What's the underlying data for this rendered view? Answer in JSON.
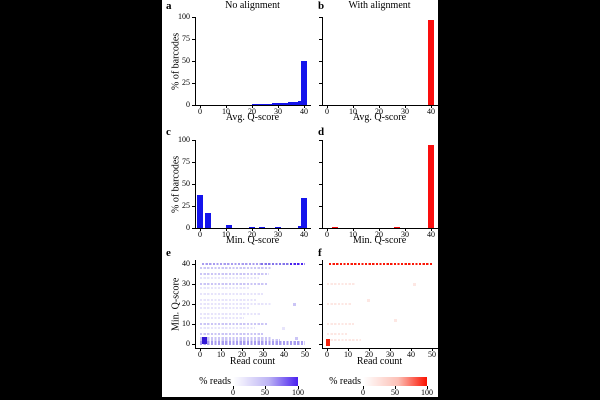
{
  "figure_background": "#ffffff",
  "page_background": "#000000",
  "chart_data": [
    {
      "id": "a",
      "panel_label": "a",
      "type": "bar",
      "title": "No alignment",
      "xlabel": "Avg. Q-score",
      "ylabel": "% of barcodes",
      "xlim": [
        0,
        40
      ],
      "ylim": [
        0,
        100
      ],
      "xticks": [
        0,
        10,
        20,
        30,
        40
      ],
      "yticks": [
        0,
        25,
        50,
        75,
        100
      ],
      "show_ytick_labels": true,
      "bar_color": "#1414EC",
      "bars": [
        [
          21,
          0.6
        ],
        [
          22,
          0.7
        ],
        [
          23,
          0.9
        ],
        [
          24,
          1.0
        ],
        [
          25,
          1.1
        ],
        [
          26,
          1.3
        ],
        [
          27,
          1.4
        ],
        [
          28,
          1.6
        ],
        [
          29,
          1.8
        ],
        [
          30,
          1.9
        ],
        [
          31,
          2.1
        ],
        [
          32,
          2.3
        ],
        [
          33,
          2.5
        ],
        [
          34,
          2.7
        ],
        [
          35,
          2.9
        ],
        [
          36,
          3.1
        ],
        [
          37,
          3.4
        ],
        [
          38,
          3.7
        ],
        [
          39,
          4.0
        ],
        [
          40,
          50
        ]
      ]
    },
    {
      "id": "b",
      "panel_label": "b",
      "type": "bar",
      "title": "With alignment",
      "xlabel": "Avg. Q-score",
      "ylabel": "",
      "xlim": [
        0,
        40
      ],
      "ylim": [
        0,
        100
      ],
      "xticks": [
        0,
        10,
        20,
        30,
        40
      ],
      "yticks": [
        0,
        25,
        50,
        75,
        100
      ],
      "show_ytick_labels": false,
      "bar_color": "#FA0E0E",
      "bars": [
        [
          40,
          97
        ]
      ]
    },
    {
      "id": "c",
      "panel_label": "c",
      "type": "bar",
      "title": "",
      "xlabel": "Min. Q-score",
      "ylabel": "% of barcodes",
      "xlim": [
        0,
        40
      ],
      "ylim": [
        0,
        100
      ],
      "xticks": [
        0,
        10,
        20,
        30,
        40
      ],
      "yticks": [
        0,
        25,
        50,
        75,
        100
      ],
      "show_ytick_labels": true,
      "bar_color": "#1414EC",
      "bars": [
        [
          0,
          38
        ],
        [
          3,
          17
        ],
        [
          11,
          3
        ],
        [
          20,
          1
        ],
        [
          24,
          1
        ],
        [
          30,
          1
        ],
        [
          39,
          2
        ],
        [
          40,
          34
        ]
      ]
    },
    {
      "id": "d",
      "panel_label": "d",
      "type": "bar",
      "title": "",
      "xlabel": "Min. Q-score",
      "ylabel": "",
      "xlim": [
        0,
        40
      ],
      "ylim": [
        0,
        100
      ],
      "xticks": [
        0,
        10,
        20,
        30,
        40
      ],
      "yticks": [
        0,
        25,
        50,
        75,
        100
      ],
      "show_ytick_labels": false,
      "bar_color": "#FA0E0E",
      "bars": [
        [
          3,
          1
        ],
        [
          27,
          1
        ],
        [
          40,
          94
        ]
      ]
    },
    {
      "id": "e",
      "panel_label": "e",
      "type": "heatmap",
      "title": "",
      "xlabel": "Read count",
      "ylabel": "Min. Q-score",
      "xlim": [
        0,
        50
      ],
      "ylim": [
        0,
        40
      ],
      "xticks": [
        0,
        10,
        20,
        30,
        40,
        50
      ],
      "yticks": [
        0,
        10,
        20,
        30,
        40
      ],
      "show_ytick_labels": true,
      "palette": {
        "vlight": "#E7E4FB",
        "light": "#CBC5F6",
        "medium": "#A89CF0",
        "mdark": "#8272EA",
        "dark": "#4A21EF",
        "blob": "#3318D6"
      },
      "rows": [
        [
          40,
          2,
          30,
          "medium"
        ],
        [
          40,
          30,
          44,
          "mdark"
        ],
        [
          40,
          44,
          50,
          "dark"
        ],
        [
          38,
          1,
          34,
          "light"
        ],
        [
          35,
          1,
          33,
          "light"
        ],
        [
          33,
          1,
          28,
          "vlight"
        ],
        [
          30,
          1,
          32,
          "light"
        ],
        [
          28,
          1,
          24,
          "vlight"
        ],
        [
          25,
          1,
          30,
          "vlight"
        ],
        [
          22,
          1,
          27,
          "vlight"
        ],
        [
          20,
          1,
          34,
          "vlight"
        ],
        [
          18,
          1,
          24,
          "vlight"
        ],
        [
          15,
          1,
          29,
          "vlight"
        ],
        [
          13,
          1,
          21,
          "vlight"
        ],
        [
          10,
          1,
          32,
          "light"
        ],
        [
          8,
          1,
          26,
          "vlight"
        ],
        [
          5,
          1,
          30,
          "light"
        ],
        [
          3,
          1,
          34,
          "light"
        ],
        [
          2,
          1,
          38,
          "light"
        ],
        [
          1,
          1,
          50,
          "medium"
        ],
        [
          0,
          1,
          50,
          "medium"
        ]
      ],
      "blocks": [
        {
          "x": 2,
          "y": 2,
          "w": 5,
          "h": 7,
          "shade": "blob"
        },
        {
          "x": 45,
          "y": 20,
          "w": 3,
          "h": 3,
          "shade": "light"
        },
        {
          "x": 46,
          "y": 3,
          "w": 3,
          "h": 3,
          "shade": "light"
        },
        {
          "x": 40,
          "y": 8,
          "w": 3,
          "h": 3,
          "shade": "vlight"
        }
      ],
      "colorbar": {
        "label": "% reads",
        "ticks": [
          0,
          50,
          100
        ],
        "mid_color": "#BDB4F4",
        "max_color": "#4A21EF"
      }
    },
    {
      "id": "f",
      "panel_label": "f",
      "type": "heatmap",
      "title": "",
      "xlabel": "Read count",
      "ylabel": "",
      "xlim": [
        0,
        50
      ],
      "ylim": [
        0,
        40
      ],
      "xticks": [
        0,
        10,
        20,
        30,
        40,
        50
      ],
      "yticks": [
        0,
        10,
        20,
        30,
        40
      ],
      "show_ytick_labels": false,
      "palette": {
        "vlight": "#FDE7E3",
        "light": "#FBB7AC",
        "medium": "#F96A52",
        "mdark": "#F94830",
        "dark": "#FB1605",
        "blob": "#F3220C"
      },
      "rows": [
        [
          40,
          2,
          50,
          "dark"
        ],
        [
          30,
          1,
          14,
          "vlight"
        ],
        [
          20,
          1,
          12,
          "vlight"
        ],
        [
          10,
          1,
          13,
          "vlight"
        ],
        [
          5,
          1,
          10,
          "vlight"
        ],
        [
          2,
          1,
          16,
          "vlight"
        ]
      ],
      "blocks": [
        {
          "x": 0.5,
          "y": 1,
          "w": 4,
          "h": 7,
          "shade": "blob"
        },
        {
          "x": 20,
          "y": 22,
          "w": 3,
          "h": 3,
          "shade": "vlight"
        },
        {
          "x": 33,
          "y": 12,
          "w": 3,
          "h": 3,
          "shade": "vlight"
        },
        {
          "x": 42,
          "y": 30,
          "w": 3,
          "h": 3,
          "shade": "vlight"
        }
      ],
      "colorbar": {
        "label": "% reads",
        "ticks": [
          0,
          50,
          100
        ],
        "mid_color": "#FCC0B6",
        "max_color": "#FB1100"
      }
    }
  ]
}
